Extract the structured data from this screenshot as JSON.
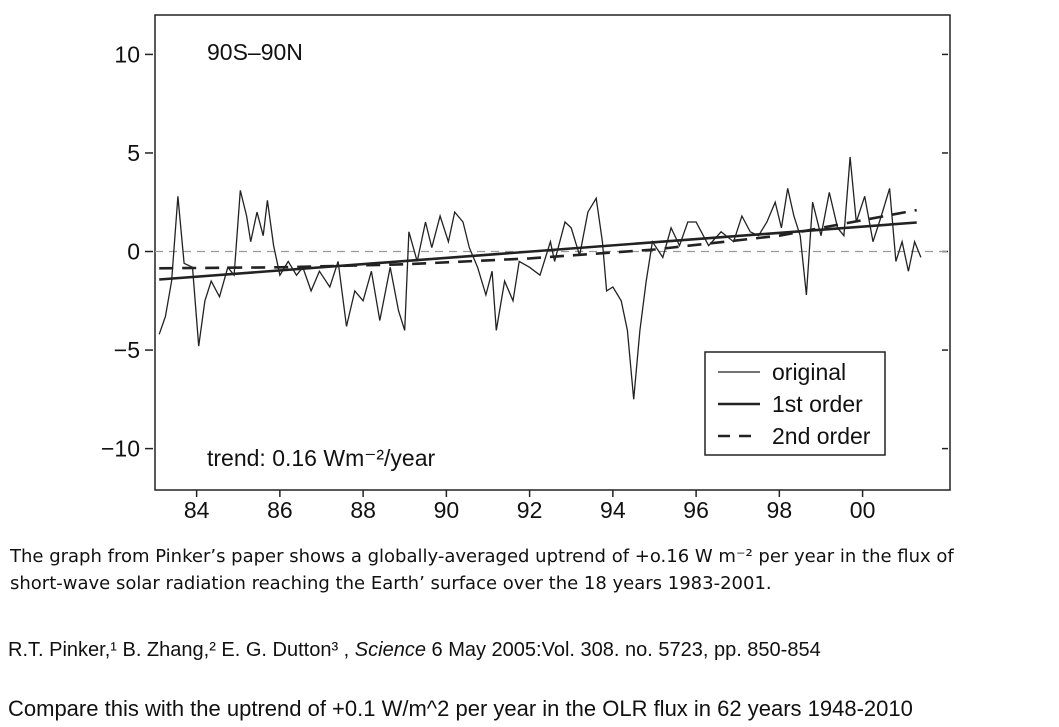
{
  "chart_data": {
    "type": "line",
    "title": "90S–90N",
    "annotation": "trend: 0.16 Wm⁻²/year",
    "xlim": [
      1983,
      2002.1
    ],
    "xticks": [
      {
        "value": 1984,
        "label": "84"
      },
      {
        "value": 1986,
        "label": "86"
      },
      {
        "value": 1988,
        "label": "88"
      },
      {
        "value": 1990,
        "label": "90"
      },
      {
        "value": 1992,
        "label": "92"
      },
      {
        "value": 1994,
        "label": "94"
      },
      {
        "value": 1996,
        "label": "96"
      },
      {
        "value": 1998,
        "label": "98"
      },
      {
        "value": 2000,
        "label": "00"
      }
    ],
    "ylim": [
      -12.1,
      12
    ],
    "yticks": [
      10,
      5,
      0,
      {
        "value": -5,
        "label": "−5"
      },
      {
        "value": -10,
        "label": "−10"
      }
    ],
    "zero_line": true,
    "mirror_ticks": true,
    "legend": "lower right",
    "series": [
      {
        "name": "original",
        "color": "#222222",
        "style": "solid",
        "x": [
          1983.1,
          1983.25,
          1983.4,
          1983.55,
          1983.7,
          1983.9,
          1984.05,
          1984.2,
          1984.35,
          1984.55,
          1984.75,
          1984.9,
          1985.05,
          1985.2,
          1985.3,
          1985.45,
          1985.6,
          1985.7,
          1985.85,
          1986.0,
          1986.2,
          1986.4,
          1986.55,
          1986.75,
          1986.95,
          1987.2,
          1987.4,
          1987.6,
          1987.8,
          1988.0,
          1988.2,
          1988.4,
          1988.65,
          1988.85,
          1989.0,
          1989.1,
          1989.3,
          1989.5,
          1989.65,
          1989.85,
          1990.05,
          1990.2,
          1990.4,
          1990.55,
          1990.75,
          1990.95,
          1991.1,
          1991.2,
          1991.4,
          1991.6,
          1991.75,
          1992.0,
          1992.25,
          1992.5,
          1992.6,
          1992.85,
          1993.0,
          1993.2,
          1993.4,
          1993.6,
          1993.75,
          1993.85,
          1994.0,
          1994.2,
          1994.35,
          1994.5,
          1994.65,
          1994.8,
          1994.95,
          1995.2,
          1995.4,
          1995.6,
          1995.8,
          1996.0,
          1996.3,
          1996.6,
          1996.9,
          1997.1,
          1997.3,
          1997.5,
          1997.7,
          1997.9,
          1998.05,
          1998.2,
          1998.35,
          1998.5,
          1998.65,
          1998.8,
          1999.0,
          1999.2,
          1999.4,
          1999.55,
          1999.7,
          1999.85,
          2000.05,
          2000.25,
          2000.45,
          2000.65,
          2000.8,
          2000.95,
          2001.1,
          2001.25,
          2001.4
        ],
        "values": [
          -4.2,
          -3.3,
          -1.5,
          2.8,
          -0.6,
          -0.8,
          -4.8,
          -2.5,
          -1.5,
          -2.3,
          -0.8,
          -1.2,
          3.1,
          1.8,
          0.5,
          2.0,
          0.8,
          2.6,
          0.3,
          -1.2,
          -0.5,
          -1.2,
          -0.8,
          -2.0,
          -1.0,
          -1.8,
          -0.5,
          -3.8,
          -2.0,
          -2.5,
          -1.0,
          -3.5,
          -0.8,
          -3.0,
          -4.0,
          1.0,
          -0.5,
          1.5,
          0.2,
          1.8,
          0.5,
          2.0,
          1.5,
          0.2,
          -0.8,
          -2.2,
          -1.0,
          -4.0,
          -1.5,
          -2.5,
          -0.5,
          -0.8,
          -1.2,
          0.5,
          -0.5,
          1.5,
          1.2,
          -0.2,
          2.0,
          2.7,
          0.5,
          -2.0,
          -1.8,
          -2.5,
          -4.0,
          -7.5,
          -4.0,
          -1.5,
          0.5,
          -0.3,
          1.2,
          0.3,
          1.5,
          1.5,
          0.3,
          1.0,
          0.5,
          1.8,
          1.0,
          0.8,
          1.5,
          2.5,
          1.2,
          3.2,
          1.8,
          0.8,
          -2.2,
          2.5,
          0.8,
          3.0,
          1.2,
          0.8,
          4.8,
          1.5,
          2.8,
          0.5,
          1.8,
          3.2,
          -0.5,
          0.5,
          -1.0,
          0.5,
          -0.3
        ]
      },
      {
        "name": "1st order",
        "color": "#222222",
        "style": "solid",
        "x": [
          1983.1,
          2001.3
        ],
        "values": [
          -1.42,
          1.47
        ]
      },
      {
        "name": "2nd order",
        "color": "#222222",
        "style": "dashed",
        "x": [
          1983.1,
          1986,
          1989,
          1992,
          1995,
          1998,
          2001.3
        ],
        "values": [
          -0.85,
          -0.8,
          -0.65,
          -0.35,
          0.1,
          0.8,
          2.1
        ]
      }
    ]
  },
  "caption": {
    "lines": [
      "The graph from Pinker’s paper shows a globally-averaged uptrend of +o.16 W m⁻² per year in the flux of",
      "short-wave solar radiation reaching the Earth’ surface over the 18 years 1983-2001."
    ]
  },
  "reference": [
    "R.T. Pinker,¹ B. Zhang,² E. G. Dutton³ , ",
    "Science",
    " 6 May 2005:Vol. 308. no. 5723, pp. 850-854"
  ],
  "comparison": "Compare this with the uptrend of +0.1 W/m^2 per year in the OLR flux in 62 years 1948-2010"
}
